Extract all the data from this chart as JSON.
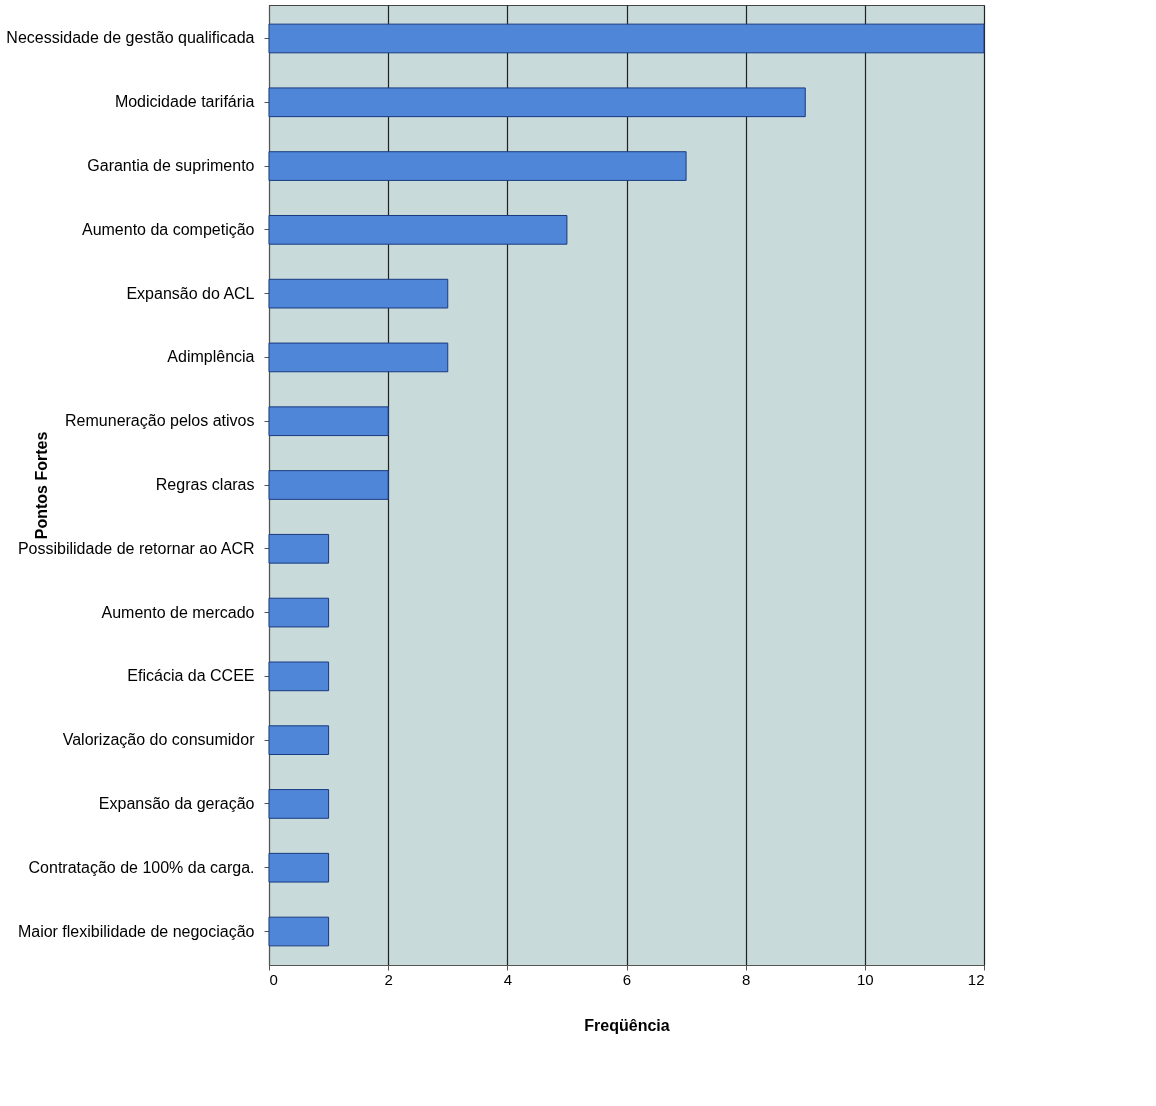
{
  "chart_data": {
    "type": "bar",
    "orientation": "horizontal",
    "xlabel": "Freqüência",
    "ylabel": "Pontos Fortes",
    "categories": [
      "Necessidade de gestão qualificada",
      "Modicidade tarifária",
      "Garantia de suprimento",
      "Aumento da competição",
      "Expansão do ACL",
      "Adimplência",
      "Remuneração pelos ativos",
      "Regras claras",
      "Possibilidade de retornar ao ACR",
      "Aumento de mercado",
      "Eficácia da CCEE",
      "Valorização do consumidor",
      "Expansão da geração",
      "Contratação de 100% da carga.",
      "Maior flexibilidade de negociação"
    ],
    "values": [
      12,
      9,
      7,
      5,
      3,
      3,
      2,
      2,
      1,
      1,
      1,
      1,
      1,
      1,
      1
    ],
    "color": "#4f86d8",
    "xlim": [
      0,
      12
    ],
    "xticks": [
      0,
      2,
      4,
      6,
      8,
      10,
      12
    ],
    "grid": "x"
  }
}
